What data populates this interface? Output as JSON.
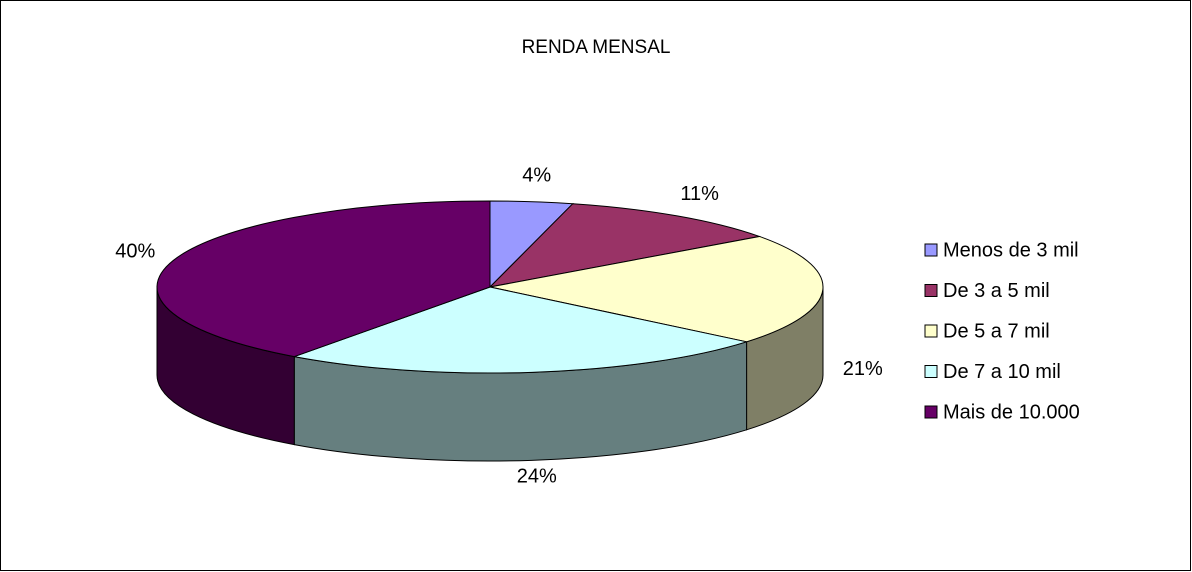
{
  "chart_data": {
    "type": "pie",
    "title": "RENDA MENSAL",
    "categories": [
      "Menos de 3 mil",
      "De 3 a 5 mil",
      "De 5 a 7 mil",
      "De 7 a 10 mil",
      "Mais de 10.000"
    ],
    "values": [
      4,
      11,
      21,
      24,
      40
    ],
    "value_labels": [
      "4%",
      "11%",
      "21%",
      "24%",
      "40%"
    ],
    "colors": [
      "#9999ff",
      "#993366",
      "#ffffcc",
      "#ccffff",
      "#660066"
    ],
    "legend": "right"
  }
}
